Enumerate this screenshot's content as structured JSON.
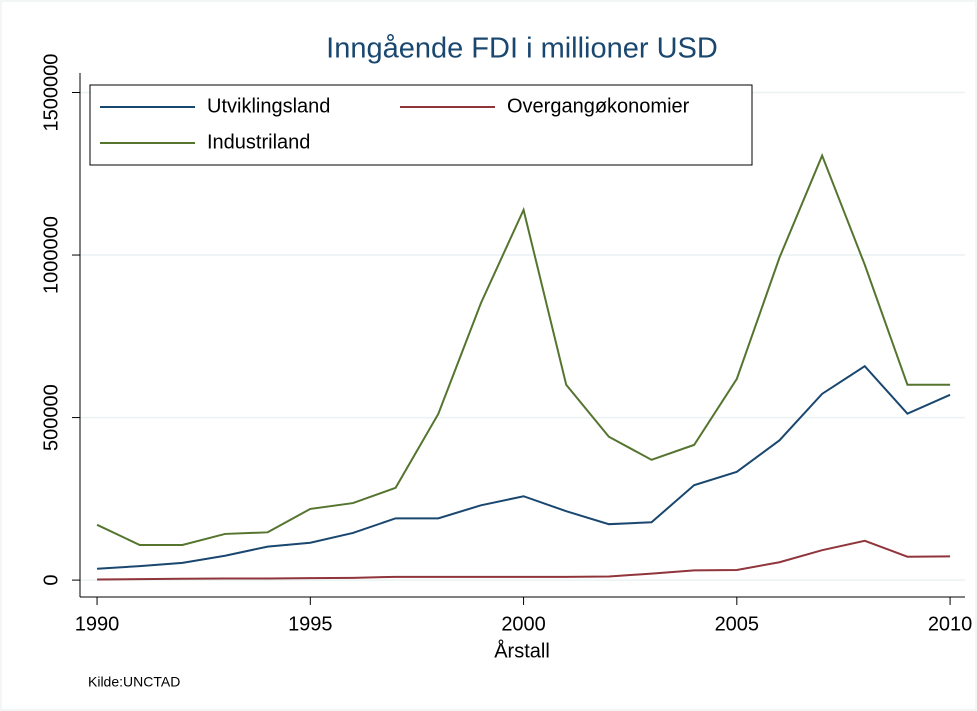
{
  "chart_data": {
    "type": "line",
    "title": "Inngående FDI i millioner USD",
    "x_label": "Årstall",
    "source": "Kilde:UNCTAD",
    "x": [
      1990,
      1991,
      1992,
      1993,
      1994,
      1995,
      1996,
      1997,
      1998,
      1999,
      2000,
      2001,
      2002,
      2003,
      2004,
      2005,
      2006,
      2007,
      2008,
      2009,
      2010
    ],
    "series": [
      {
        "name": "Utviklingsland",
        "color": "#1a476f",
        "values": [
          35000,
          43000,
          53000,
          75000,
          103000,
          115000,
          145000,
          190000,
          190000,
          230000,
          258000,
          212000,
          172000,
          178000,
          292000,
          333000,
          430000,
          573000,
          658000,
          512000,
          570000
        ]
      },
      {
        "name": "Overgangøkonomier",
        "color": "#90353b",
        "values": [
          2000,
          3000,
          4000,
          5000,
          5000,
          6000,
          7000,
          10000,
          10000,
          10000,
          10000,
          10000,
          11000,
          20000,
          30000,
          31000,
          55000,
          92000,
          121000,
          72000,
          73000
        ]
      },
      {
        "name": "Industriland",
        "color": "#55752f",
        "values": [
          170000,
          108000,
          108000,
          142000,
          147000,
          219000,
          237000,
          284000,
          511000,
          852000,
          1139000,
          601000,
          441000,
          370000,
          416000,
          619000,
          992000,
          1306000,
          970000,
          601000,
          601000
        ]
      }
    ],
    "xlim": [
      1989.6,
      2010.35
    ],
    "xticks": [
      1990,
      1995,
      2000,
      2005,
      2010
    ],
    "ylim": [
      -52000,
      1560000
    ],
    "yticks": [
      0,
      500000,
      1000000,
      1500000
    ],
    "grid": true,
    "legend": "top-left"
  }
}
